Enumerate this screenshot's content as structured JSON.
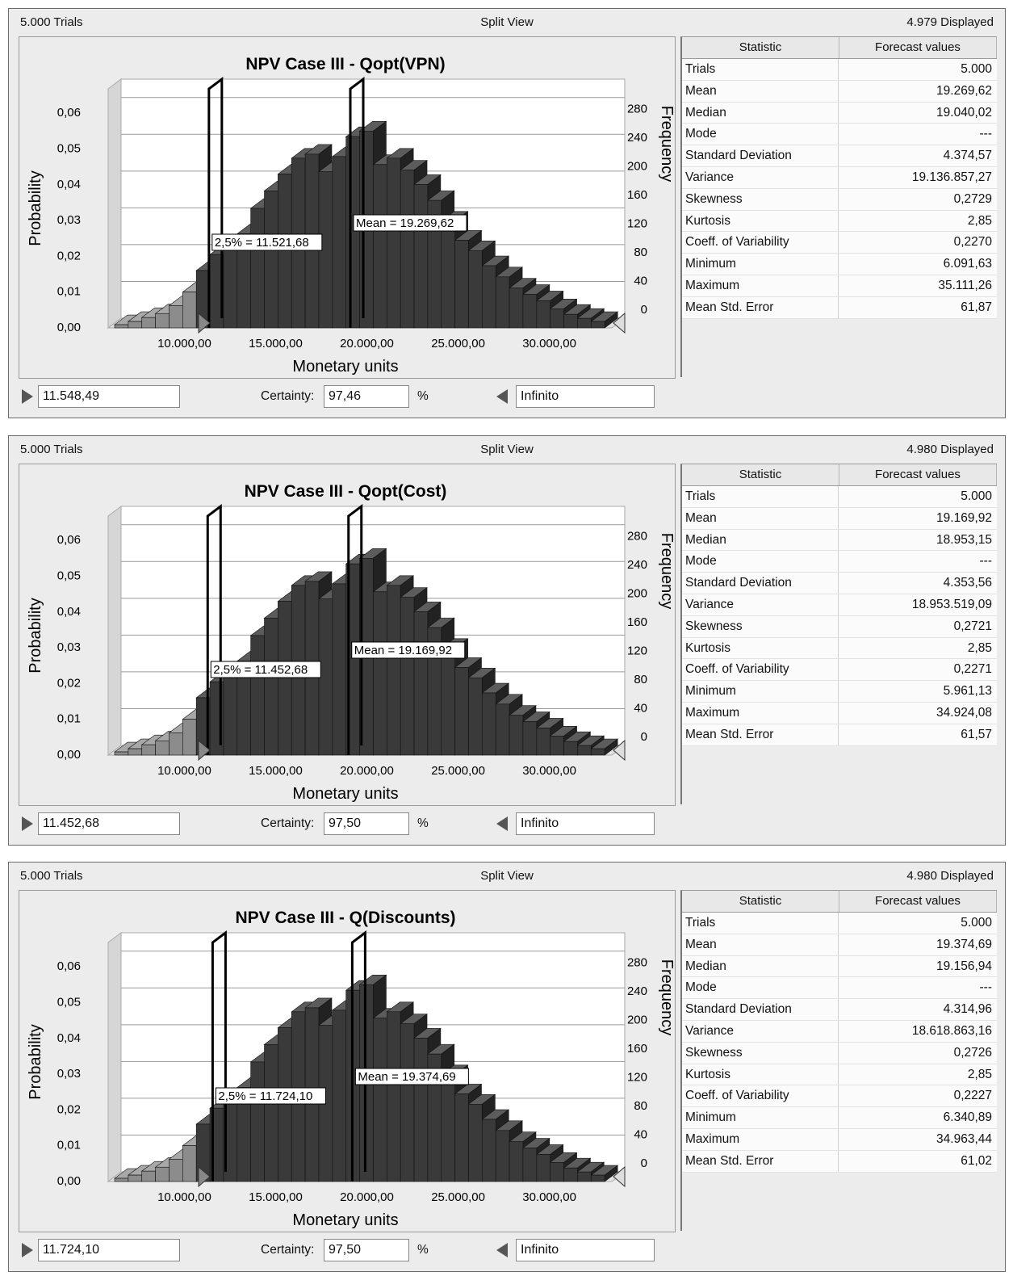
{
  "charts": [
    {
      "header": {
        "trials": "5.000 Trials",
        "view": "Split View",
        "displayed": "4.979 Displayed"
      },
      "chart_data": {
        "type": "bar",
        "title": "NPV Case III - Qopt(VPN)",
        "xlabel": "Monetary units",
        "ylabel_left": "Probability",
        "ylabel_right": "Frequency",
        "x_ticks": [
          "10.000,00",
          "15.000,00",
          "20.000,00",
          "25.000,00",
          "30.000,00"
        ],
        "y_ticks_left": [
          "0,00",
          "0,01",
          "0,02",
          "0,03",
          "0,04",
          "0,05",
          "0,06"
        ],
        "y_ticks_right": [
          "0",
          "40",
          "80",
          "120",
          "160",
          "200",
          "240",
          "280"
        ],
        "bins_x": [
          7000,
          7700,
          8400,
          9100,
          9800,
          10500,
          11200,
          11900,
          12600,
          13300,
          14000,
          14700,
          15400,
          16100,
          16800,
          17500,
          18200,
          18900,
          19600,
          20300,
          21000,
          21700,
          22400,
          23100,
          23800,
          24500,
          25200,
          25900,
          26600,
          27300,
          28000,
          28700,
          29400,
          30100,
          30800,
          31500
        ],
        "frequency": [
          4,
          8,
          13,
          18,
          28,
          45,
          72,
          92,
          100,
          118,
          150,
          172,
          193,
          213,
          218,
          196,
          215,
          240,
          247,
          205,
          213,
          198,
          180,
          160,
          134,
          110,
          97,
          78,
          64,
          50,
          42,
          34,
          24,
          17,
          12,
          8
        ],
        "lower_limit": 11521.68,
        "mean": 19269.62,
        "left_marker_label": "2,5% = 11.521,68",
        "mean_label": "Mean = 19.269,62"
      },
      "stats": {
        "header": [
          "Statistic",
          "Forecast values"
        ],
        "rows": [
          [
            "Trials",
            "5.000"
          ],
          [
            "Mean",
            "19.269,62"
          ],
          [
            "Median",
            "19.040,02"
          ],
          [
            "Mode",
            "---"
          ],
          [
            "Standard Deviation",
            "4.374,57"
          ],
          [
            "Variance",
            "19.136.857,27"
          ],
          [
            "Skewness",
            "0,2729"
          ],
          [
            "Kurtosis",
            "2,85"
          ],
          [
            "Coeff. of Variability",
            "0,2270"
          ],
          [
            "Minimum",
            "6.091,63"
          ],
          [
            "Maximum",
            "35.111,26"
          ],
          [
            "Mean Std. Error",
            "61,87"
          ]
        ]
      },
      "controls": {
        "left_value": "11.548,49",
        "certainty_label": "Certainty:",
        "certainty_value": "97,46",
        "percent": "%",
        "right_value": "Infinito"
      }
    },
    {
      "header": {
        "trials": "5.000 Trials",
        "view": "Split View",
        "displayed": "4.980 Displayed"
      },
      "chart_data": {
        "type": "bar",
        "title": "NPV Case III - Qopt(Cost)",
        "xlabel": "Monetary units",
        "ylabel_left": "Probability",
        "ylabel_right": "Frequency",
        "x_ticks": [
          "10.000,00",
          "15.000,00",
          "20.000,00",
          "25.000,00",
          "30.000,00"
        ],
        "y_ticks_left": [
          "0,00",
          "0,01",
          "0,02",
          "0,03",
          "0,04",
          "0,05",
          "0,06"
        ],
        "y_ticks_right": [
          "0",
          "40",
          "80",
          "120",
          "160",
          "200",
          "240",
          "280"
        ],
        "bins_x": [
          7000,
          7700,
          8400,
          9100,
          9800,
          10500,
          11200,
          11900,
          12600,
          13300,
          14000,
          14700,
          15400,
          16100,
          16800,
          17500,
          18200,
          18900,
          19600,
          20300,
          21000,
          21700,
          22400,
          23100,
          23800,
          24500,
          25200,
          25900,
          26600,
          27300,
          28000,
          28700,
          29400,
          30100,
          30800,
          31500
        ],
        "frequency": [
          4,
          8,
          13,
          18,
          28,
          45,
          72,
          92,
          100,
          118,
          150,
          172,
          193,
          213,
          218,
          196,
          215,
          240,
          247,
          205,
          213,
          198,
          180,
          160,
          134,
          110,
          97,
          78,
          64,
          50,
          42,
          34,
          24,
          17,
          12,
          8
        ],
        "lower_limit": 11452.68,
        "mean": 19169.92,
        "left_marker_label": "2,5% = 11.452,68",
        "mean_label": "Mean = 19.169,92"
      },
      "stats": {
        "header": [
          "Statistic",
          "Forecast values"
        ],
        "rows": [
          [
            "Trials",
            "5.000"
          ],
          [
            "Mean",
            "19.169,92"
          ],
          [
            "Median",
            "18.953,15"
          ],
          [
            "Mode",
            "---"
          ],
          [
            "Standard Deviation",
            "4.353,56"
          ],
          [
            "Variance",
            "18.953.519,09"
          ],
          [
            "Skewness",
            "0,2721"
          ],
          [
            "Kurtosis",
            "2,85"
          ],
          [
            "Coeff. of Variability",
            "0,2271"
          ],
          [
            "Minimum",
            "5.961,13"
          ],
          [
            "Maximum",
            "34.924,08"
          ],
          [
            "Mean Std. Error",
            "61,57"
          ]
        ]
      },
      "controls": {
        "left_value": "11.452,68",
        "certainty_label": "Certainty:",
        "certainty_value": "97,50",
        "percent": "%",
        "right_value": "Infinito"
      }
    },
    {
      "header": {
        "trials": "5.000 Trials",
        "view": "Split View",
        "displayed": "4.980 Displayed"
      },
      "chart_data": {
        "type": "bar",
        "title": "NPV Case III - Q(Discounts)",
        "xlabel": "Monetary units",
        "ylabel_left": "Probability",
        "ylabel_right": "Frequency",
        "x_ticks": [
          "10.000,00",
          "15.000,00",
          "20.000,00",
          "25.000,00",
          "30.000,00"
        ],
        "y_ticks_left": [
          "0,00",
          "0,01",
          "0,02",
          "0,03",
          "0,04",
          "0,05",
          "0,06"
        ],
        "y_ticks_right": [
          "0",
          "40",
          "80",
          "120",
          "160",
          "200",
          "240",
          "280"
        ],
        "bins_x": [
          7000,
          7700,
          8400,
          9100,
          9800,
          10500,
          11200,
          11900,
          12600,
          13300,
          14000,
          14700,
          15400,
          16100,
          16800,
          17500,
          18200,
          18900,
          19600,
          20300,
          21000,
          21700,
          22400,
          23100,
          23800,
          24500,
          25200,
          25900,
          26600,
          27300,
          28000,
          28700,
          29400,
          30100,
          30800,
          31500
        ],
        "frequency": [
          4,
          8,
          13,
          18,
          28,
          45,
          72,
          92,
          100,
          118,
          150,
          172,
          193,
          213,
          218,
          196,
          215,
          240,
          247,
          205,
          213,
          198,
          180,
          160,
          134,
          110,
          97,
          78,
          64,
          50,
          42,
          34,
          24,
          17,
          12,
          8
        ],
        "lower_limit": 11724.1,
        "mean": 19374.69,
        "left_marker_label": "2,5% = 11.724,10",
        "mean_label": "Mean = 19.374,69"
      },
      "stats": {
        "header": [
          "Statistic",
          "Forecast values"
        ],
        "rows": [
          [
            "Trials",
            "5.000"
          ],
          [
            "Mean",
            "19.374,69"
          ],
          [
            "Median",
            "19.156,94"
          ],
          [
            "Mode",
            "---"
          ],
          [
            "Standard Deviation",
            "4.314,96"
          ],
          [
            "Variance",
            "18.618.863,16"
          ],
          [
            "Skewness",
            "0,2726"
          ],
          [
            "Kurtosis",
            "2,85"
          ],
          [
            "Coeff. of Variability",
            "0,2227"
          ],
          [
            "Minimum",
            "6.340,89"
          ],
          [
            "Maximum",
            "34.963,44"
          ],
          [
            "Mean Std. Error",
            "61,02"
          ]
        ]
      },
      "controls": {
        "left_value": "11.724,10",
        "certainty_label": "Certainty:",
        "certainty_value": "97,50",
        "percent": "%",
        "right_value": "Infinito"
      }
    }
  ],
  "colors": {
    "bar_dark": "#3a3a3a",
    "bar_tail": "#8a8a8a",
    "bar_top": "#5a5a5a",
    "panel_bg": "#ececec"
  }
}
